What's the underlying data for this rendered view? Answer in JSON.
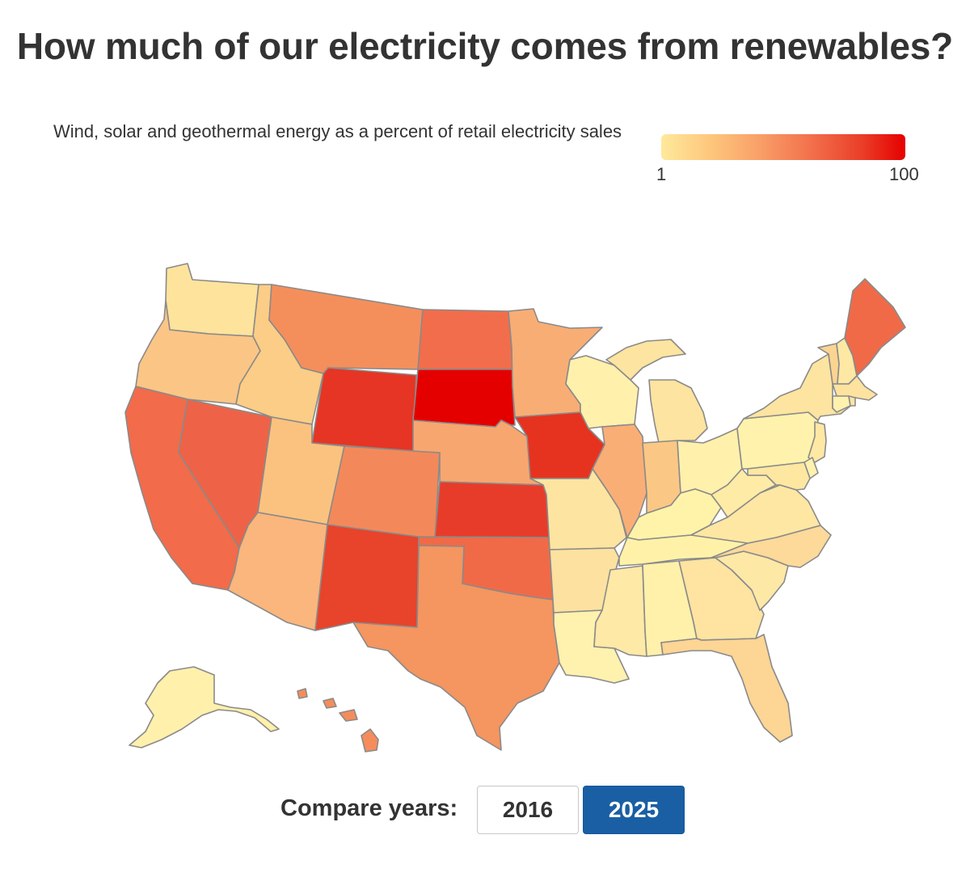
{
  "title": "How much of our electricity comes from renewables?",
  "subtitle": "Wind, solar and geothermal energy as a percent of retail electricity sales",
  "legend": {
    "min_label": "1",
    "max_label": "100"
  },
  "colors": {
    "scale": [
      "#ffe99b",
      "#fdc77d",
      "#f9a068",
      "#f26f4b",
      "#ea3f28",
      "#e50000"
    ],
    "button_active": "#1a5fa4"
  },
  "controls": {
    "label": "Compare years:",
    "years": [
      "2016",
      "2025"
    ],
    "selected_year": "2025"
  },
  "states": {
    "WA": "#fde39c",
    "OR": "#fbc585",
    "CA": "#f26b4a",
    "NV": "#ee6347",
    "ID": "#fbcd86",
    "MT": "#f48f5c",
    "WY": "#e63524",
    "UT": "#fbc27f",
    "AZ": "#fab67c",
    "CO": "#f3895a",
    "NM": "#e8432b",
    "ND": "#f26d4b",
    "SD": "#e50000",
    "NE": "#f8a66f",
    "KS": "#e83c2a",
    "OK": "#f06a48",
    "TX": "#f5955f",
    "MN": "#f8ad75",
    "IA": "#e6331f",
    "MO": "#fde4a0",
    "AR": "#fde1a0",
    "LA": "#fff1ae",
    "WI": "#fff0ac",
    "IL": "#f9ae76",
    "MI": "#fde4a0",
    "IN": "#fbc785",
    "OH": "#fff0ac",
    "KY": "#fff3a9",
    "TN": "#fff2a8",
    "MS": "#fee9a6",
    "AL": "#fff0aa",
    "GA": "#fee3a1",
    "FL": "#fdd594",
    "SC": "#fee8a6",
    "NC": "#fdd99a",
    "VA": "#fee7a2",
    "WV": "#feeba6",
    "PA": "#fff2ac",
    "NY": "#fde4a0",
    "NJ": "#fee8a4",
    "MD": "#fde7a1",
    "DE": "#fff1ae",
    "VT": "#fcd491",
    "NH": "#fee8a4",
    "ME": "#f06a48",
    "MA": "#fde39f",
    "CT": "#fff1ae",
    "RI": "#fde5a2",
    "AK": "#fff0ab",
    "HI": "#f58c5b"
  }
}
